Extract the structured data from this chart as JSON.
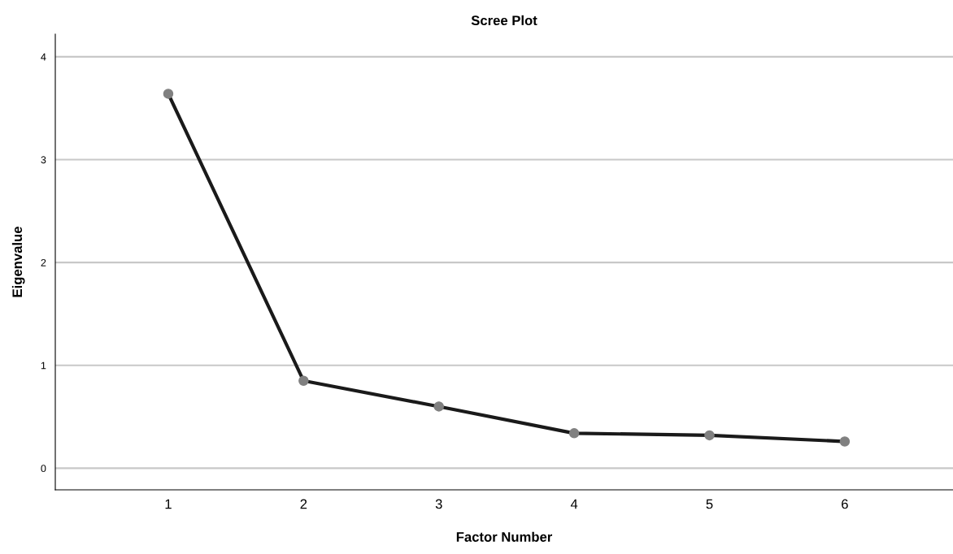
{
  "chart_data": {
    "type": "line",
    "title": "Scree Plot",
    "xlabel": "Factor Number",
    "ylabel": "Eigenvalue",
    "categories": [
      "1",
      "2",
      "3",
      "4",
      "5",
      "6"
    ],
    "series": [
      {
        "color": "#1a1a1a",
        "values": [
          3.64,
          0.85,
          0.6,
          0.34,
          0.32,
          0.26
        ]
      }
    ],
    "ylim": [
      -0.21,
      4.22
    ],
    "yticks": [
      0,
      1,
      2,
      3,
      4
    ],
    "grid": "y",
    "marker": "circle",
    "line_style": "solid"
  }
}
